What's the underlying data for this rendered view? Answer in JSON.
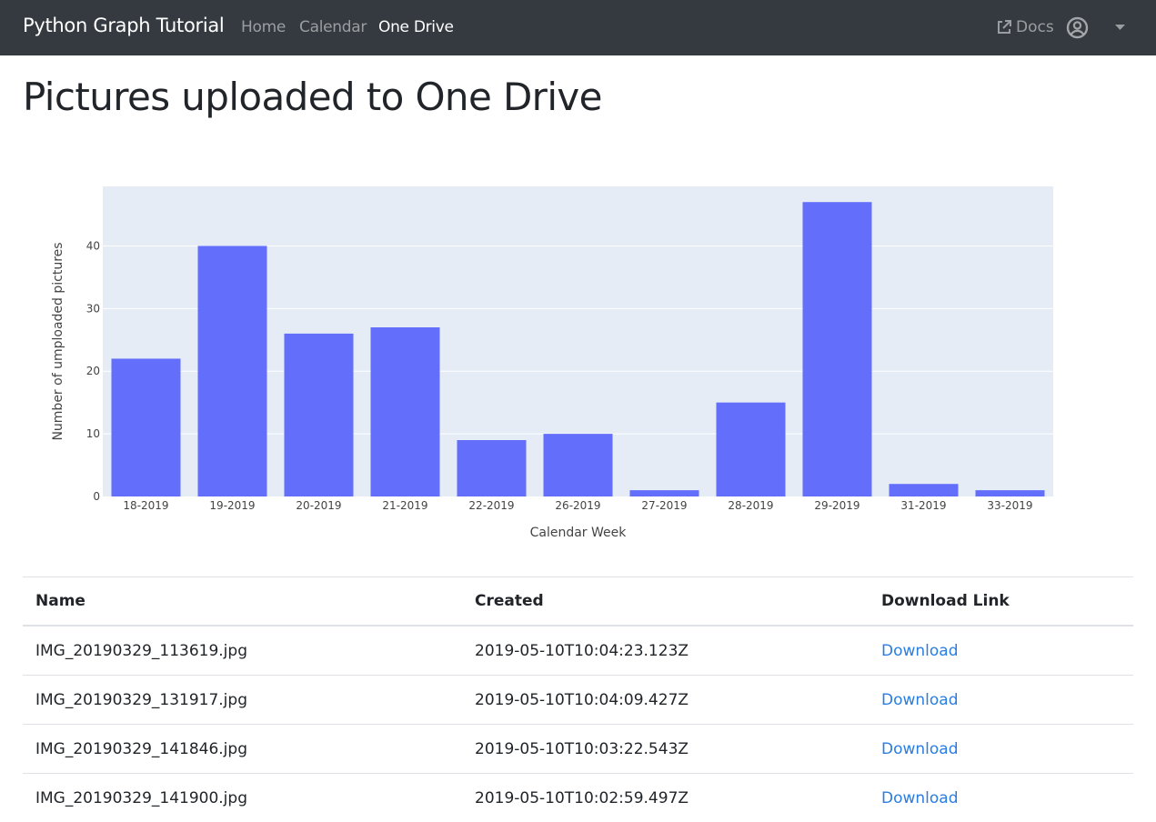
{
  "navbar": {
    "brand": "Python Graph Tutorial",
    "links": [
      {
        "label": "Home",
        "active": false
      },
      {
        "label": "Calendar",
        "active": false
      },
      {
        "label": "One Drive",
        "active": true
      }
    ],
    "docs_label": "Docs",
    "docs_icon": "external-link-icon",
    "user_icon": "user-circle-icon",
    "dropdown_icon": "caret-down-icon"
  },
  "page_title": "Pictures uploaded to One Drive",
  "chart_data": {
    "type": "bar",
    "categories": [
      "18-2019",
      "19-2019",
      "20-2019",
      "21-2019",
      "22-2019",
      "26-2019",
      "27-2019",
      "28-2019",
      "29-2019",
      "31-2019",
      "33-2019"
    ],
    "values": [
      22,
      40,
      26,
      27,
      9,
      10,
      1,
      15,
      47,
      2,
      1
    ],
    "xlabel": "Calendar Week",
    "ylabel": "Number of umploaded pictures",
    "yticks": [
      0,
      10,
      20,
      30,
      40
    ],
    "ylim": [
      0,
      49.5
    ],
    "grid": true,
    "bar_color": "#636efa",
    "plot_bg": "#e5ecf6"
  },
  "table": {
    "headers": [
      "Name",
      "Created",
      "Download Link"
    ],
    "rows": [
      {
        "name": "IMG_20190329_113619.jpg",
        "created": "2019-05-10T10:04:23.123Z",
        "link": "Download"
      },
      {
        "name": "IMG_20190329_131917.jpg",
        "created": "2019-05-10T10:04:09.427Z",
        "link": "Download"
      },
      {
        "name": "IMG_20190329_141846.jpg",
        "created": "2019-05-10T10:03:22.543Z",
        "link": "Download"
      },
      {
        "name": "IMG_20190329_141900.jpg",
        "created": "2019-05-10T10:02:59.497Z",
        "link": "Download"
      }
    ]
  }
}
